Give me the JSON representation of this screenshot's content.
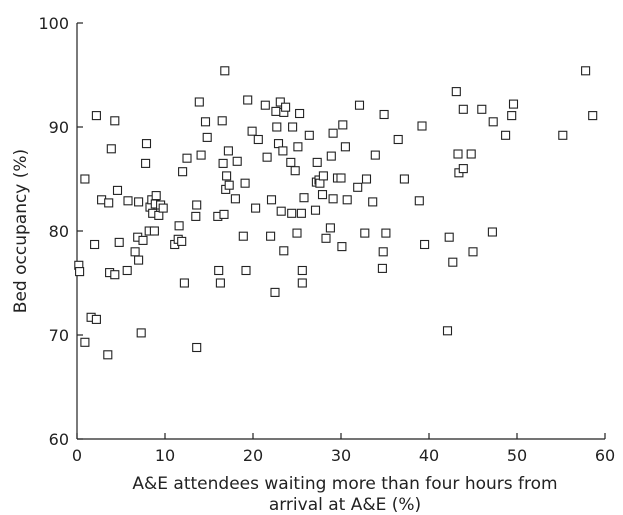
{
  "chart_data": {
    "type": "scatter",
    "xlabel_line1": "A&E attendees waiting more than four hours from",
    "xlabel_line2": "arrival at A&E (%)",
    "ylabel": "Bed occupancy (%)",
    "xlim": [
      0,
      60
    ],
    "ylim": [
      60,
      100
    ],
    "x_ticks": [
      0,
      10,
      20,
      30,
      40,
      50,
      60
    ],
    "y_ticks": [
      60,
      70,
      80,
      90,
      100
    ],
    "grid": false,
    "marker": "open-square",
    "points": [
      [
        0.2,
        76.7
      ],
      [
        0.3,
        76.1
      ],
      [
        0.9,
        69.3
      ],
      [
        0.9,
        85.0
      ],
      [
        1.6,
        71.7
      ],
      [
        2.0,
        78.7
      ],
      [
        2.2,
        71.5
      ],
      [
        2.2,
        91.1
      ],
      [
        2.8,
        83.0
      ],
      [
        3.5,
        68.1
      ],
      [
        3.6,
        82.7
      ],
      [
        3.7,
        76.0
      ],
      [
        3.9,
        87.9
      ],
      [
        4.3,
        75.8
      ],
      [
        4.3,
        90.6
      ],
      [
        4.6,
        83.9
      ],
      [
        4.8,
        78.9
      ],
      [
        5.7,
        76.2
      ],
      [
        5.8,
        82.9
      ],
      [
        6.6,
        78.0
      ],
      [
        6.9,
        79.4
      ],
      [
        7.0,
        82.8
      ],
      [
        7.0,
        77.2
      ],
      [
        7.3,
        70.2
      ],
      [
        7.5,
        79.1
      ],
      [
        7.8,
        86.5
      ],
      [
        7.9,
        88.4
      ],
      [
        8.2,
        80.0
      ],
      [
        8.3,
        82.3
      ],
      [
        8.5,
        83.0
      ],
      [
        8.6,
        81.7
      ],
      [
        8.8,
        80.0
      ],
      [
        8.9,
        82.6
      ],
      [
        9.0,
        83.4
      ],
      [
        9.3,
        81.5
      ],
      [
        9.5,
        82.5
      ],
      [
        9.8,
        82.2
      ],
      [
        11.1,
        78.7
      ],
      [
        11.5,
        79.2
      ],
      [
        11.6,
        80.5
      ],
      [
        11.9,
        79.0
      ],
      [
        12.0,
        85.7
      ],
      [
        12.2,
        75.0
      ],
      [
        12.5,
        87.0
      ],
      [
        13.5,
        81.4
      ],
      [
        13.6,
        82.5
      ],
      [
        13.6,
        68.8
      ],
      [
        13.9,
        92.4
      ],
      [
        14.1,
        87.3
      ],
      [
        14.6,
        90.5
      ],
      [
        14.8,
        89.0
      ],
      [
        16.0,
        81.4
      ],
      [
        16.1,
        76.2
      ],
      [
        16.3,
        75.0
      ],
      [
        16.5,
        90.6
      ],
      [
        16.6,
        86.5
      ],
      [
        16.7,
        81.6
      ],
      [
        16.8,
        95.4
      ],
      [
        16.9,
        84.0
      ],
      [
        17.0,
        85.3
      ],
      [
        17.2,
        87.7
      ],
      [
        17.3,
        84.4
      ],
      [
        18.0,
        83.1
      ],
      [
        18.2,
        86.7
      ],
      [
        18.9,
        79.5
      ],
      [
        19.1,
        84.6
      ],
      [
        19.2,
        76.2
      ],
      [
        19.4,
        92.6
      ],
      [
        19.9,
        89.6
      ],
      [
        20.3,
        82.2
      ],
      [
        20.6,
        88.8
      ],
      [
        21.4,
        92.1
      ],
      [
        21.6,
        87.1
      ],
      [
        22.0,
        79.5
      ],
      [
        22.1,
        83.0
      ],
      [
        22.5,
        74.1
      ],
      [
        22.6,
        91.5
      ],
      [
        22.7,
        90.0
      ],
      [
        22.9,
        88.4
      ],
      [
        23.1,
        92.4
      ],
      [
        23.2,
        81.9
      ],
      [
        23.4,
        87.7
      ],
      [
        23.5,
        91.4
      ],
      [
        23.5,
        78.1
      ],
      [
        23.7,
        91.9
      ],
      [
        24.3,
        86.6
      ],
      [
        24.4,
        81.7
      ],
      [
        24.5,
        90.0
      ],
      [
        24.8,
        85.8
      ],
      [
        25.0,
        79.8
      ],
      [
        25.1,
        88.1
      ],
      [
        25.3,
        91.3
      ],
      [
        25.5,
        81.7
      ],
      [
        25.6,
        76.2
      ],
      [
        25.6,
        75.0
      ],
      [
        25.8,
        83.2
      ],
      [
        26.4,
        89.2
      ],
      [
        27.1,
        82.0
      ],
      [
        27.2,
        84.7
      ],
      [
        27.3,
        86.6
      ],
      [
        27.5,
        84.9
      ],
      [
        27.6,
        84.6
      ],
      [
        27.9,
        83.5
      ],
      [
        28.0,
        85.3
      ],
      [
        28.3,
        79.3
      ],
      [
        28.8,
        80.3
      ],
      [
        28.9,
        87.2
      ],
      [
        29.1,
        89.4
      ],
      [
        29.1,
        83.1
      ],
      [
        29.6,
        85.1
      ],
      [
        30.0,
        85.1
      ],
      [
        30.1,
        78.5
      ],
      [
        30.2,
        90.2
      ],
      [
        30.5,
        88.1
      ],
      [
        30.7,
        83.0
      ],
      [
        31.9,
        84.2
      ],
      [
        32.1,
        92.1
      ],
      [
        32.7,
        79.8
      ],
      [
        32.9,
        85.0
      ],
      [
        33.6,
        82.8
      ],
      [
        33.9,
        87.3
      ],
      [
        34.7,
        76.4
      ],
      [
        34.8,
        78.0
      ],
      [
        34.9,
        91.2
      ],
      [
        35.1,
        79.8
      ],
      [
        36.5,
        88.8
      ],
      [
        37.2,
        85.0
      ],
      [
        38.9,
        82.9
      ],
      [
        39.2,
        90.1
      ],
      [
        39.5,
        78.7
      ],
      [
        42.1,
        70.4
      ],
      [
        42.3,
        79.4
      ],
      [
        42.7,
        77.0
      ],
      [
        43.1,
        93.4
      ],
      [
        43.3,
        87.4
      ],
      [
        43.4,
        85.6
      ],
      [
        43.9,
        86.0
      ],
      [
        43.9,
        91.7
      ],
      [
        44.8,
        87.4
      ],
      [
        45.0,
        78.0
      ],
      [
        46.0,
        91.7
      ],
      [
        47.2,
        79.9
      ],
      [
        47.3,
        90.5
      ],
      [
        48.7,
        89.2
      ],
      [
        49.4,
        91.1
      ],
      [
        49.6,
        92.2
      ],
      [
        55.2,
        89.2
      ],
      [
        57.8,
        95.4
      ],
      [
        58.6,
        91.1
      ]
    ]
  }
}
